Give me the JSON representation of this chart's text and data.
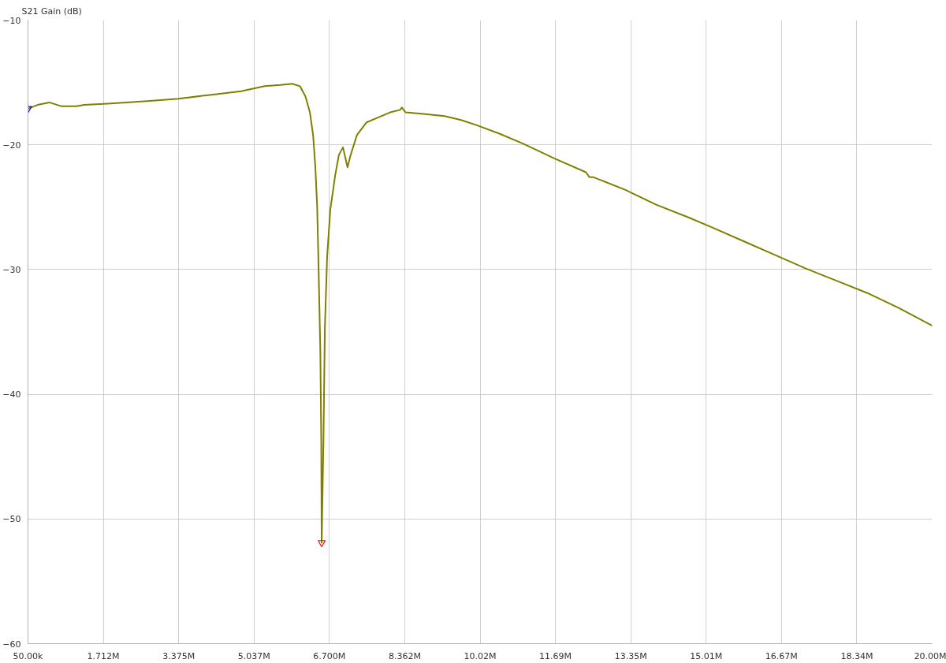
{
  "chart_data": {
    "type": "line",
    "ylabel": "S21 Gain (dB)",
    "xlim": [
      50000,
      20000000
    ],
    "ylim": [
      -60,
      -10
    ],
    "xticks": [
      {
        "value": 50000,
        "label": "50.00k"
      },
      {
        "value": 1712500,
        "label": "1.712M"
      },
      {
        "value": 3375000,
        "label": "3.375M"
      },
      {
        "value": 5037500,
        "label": "5.037M"
      },
      {
        "value": 6700000,
        "label": "6.700M"
      },
      {
        "value": 8362500,
        "label": "8.362M"
      },
      {
        "value": 10025000,
        "label": "10.02M"
      },
      {
        "value": 11687500,
        "label": "11.69M"
      },
      {
        "value": 13350000,
        "label": "13.35M"
      },
      {
        "value": 15012500,
        "label": "15.01M"
      },
      {
        "value": 16675000,
        "label": "16.67M"
      },
      {
        "value": 18337500,
        "label": "18.34M"
      },
      {
        "value": 20000000,
        "label": "20.00M"
      }
    ],
    "yticks": [
      -10,
      -20,
      -30,
      -40,
      -50,
      -60
    ],
    "grid": true,
    "line_style": "solid",
    "series": [
      {
        "color": "#808000",
        "x": [
          50000,
          260000,
          520000,
          780000,
          1120000,
          1290000,
          1810000,
          2680000,
          3370000,
          4060000,
          4750000,
          5270000,
          5620000,
          5880000,
          6050000,
          6170000,
          6270000,
          6340000,
          6390000,
          6430000,
          6460000,
          6500000,
          6520000,
          6530000,
          6570000,
          6600000,
          6650000,
          6720000,
          6830000,
          6910000,
          7000000,
          7100000,
          7170000,
          7310000,
          7520000,
          7780000,
          8040000,
          8260000,
          8300000,
          8380000,
          8730000,
          9240000,
          9590000,
          9930000,
          10450000,
          10970000,
          11670000,
          12360000,
          12440000,
          12530000,
          13220000,
          13910000,
          14610000,
          15130000,
          15820000,
          16510000,
          17200000,
          17890000,
          18580000,
          19270000,
          20000000
        ],
        "values": [
          -17.1,
          -16.8,
          -16.6,
          -16.9,
          -16.9,
          -16.8,
          -16.7,
          -16.5,
          -16.3,
          -16.0,
          -15.7,
          -15.3,
          -15.2,
          -15.1,
          -15.3,
          -16.1,
          -17.4,
          -19.2,
          -21.8,
          -24.9,
          -29.6,
          -36.5,
          -43.5,
          -51.9,
          -43.5,
          -34.7,
          -29.0,
          -25.2,
          -22.4,
          -20.8,
          -20.2,
          -21.8,
          -20.8,
          -19.2,
          -18.2,
          -17.8,
          -17.4,
          -17.2,
          -17.0,
          -17.4,
          -17.5,
          -17.7,
          -18.0,
          -18.4,
          -19.1,
          -19.9,
          -21.1,
          -22.2,
          -22.6,
          -22.6,
          -23.6,
          -24.8,
          -25.8,
          -26.6,
          -27.7,
          -28.8,
          -29.9,
          -30.9,
          -31.9,
          -33.1,
          -34.5
        ]
      },
      {
        "type": "scatter",
        "marker": "triangle",
        "colors": [
          "#0000ff",
          "#ff0000"
        ],
        "x": [
          50000,
          6530000
        ],
        "values": [
          -17.1,
          -51.9
        ]
      }
    ]
  }
}
